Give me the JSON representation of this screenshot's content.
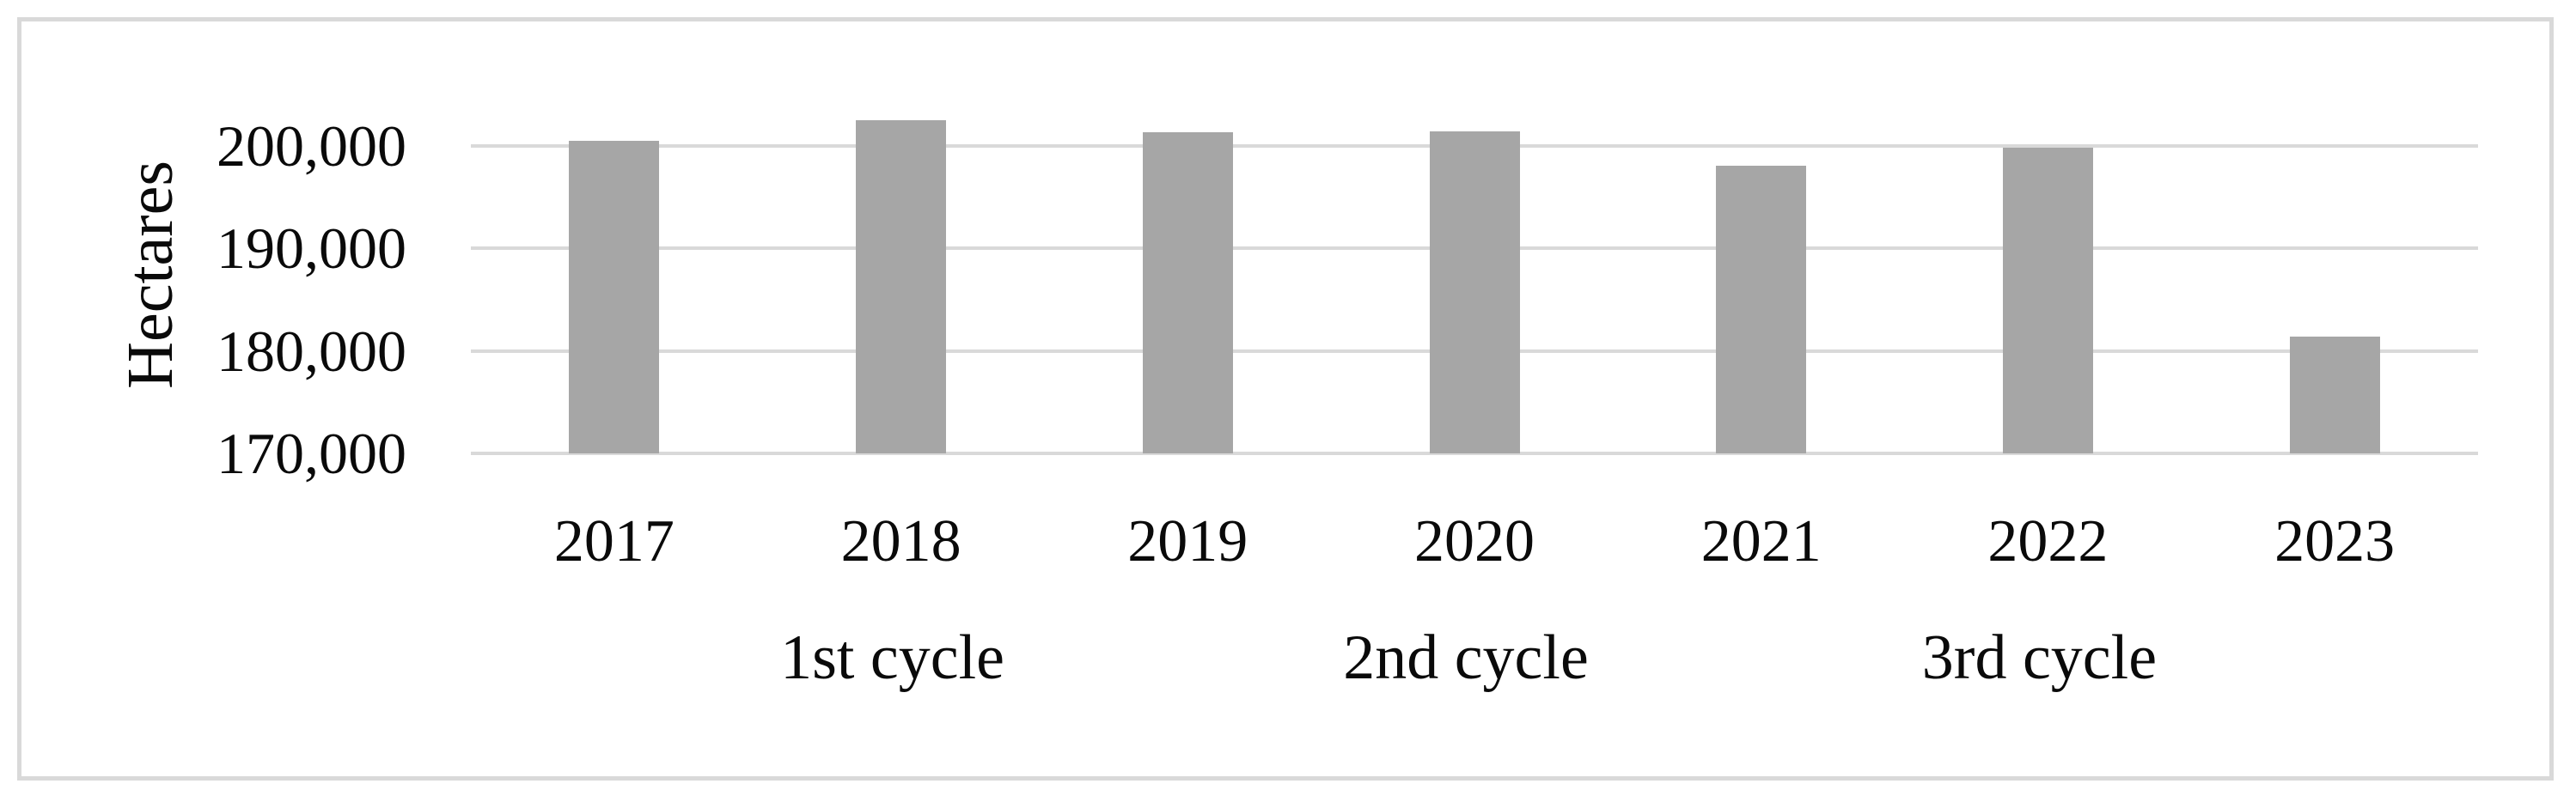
{
  "figure": {
    "background": "#ffffff",
    "frame_color": "#d9d9d9",
    "text_color": "#0a0a0a"
  },
  "chart_data": {
    "type": "bar",
    "title": "",
    "xlabel": "",
    "ylabel": "Hectares",
    "categories": [
      "2017",
      "2018",
      "2019",
      "2020",
      "2021",
      "2022",
      "2023"
    ],
    "values": [
      200500,
      202500,
      201300,
      201400,
      198100,
      199800,
      181400
    ],
    "ylim": [
      170000,
      203000
    ],
    "yticks": [
      {
        "value": 200000,
        "label": "200,000"
      },
      {
        "value": 190000,
        "label": "190,000"
      },
      {
        "value": 180000,
        "label": "180,000"
      },
      {
        "value": 170000,
        "label": "170,000"
      }
    ],
    "cycle_labels": [
      {
        "label": "1st cycle",
        "category": "2018"
      },
      {
        "label": "2nd cycle",
        "category": "2020"
      },
      {
        "label": "3rd cycle",
        "category": "2022"
      }
    ],
    "grid": "horizontal",
    "legend": "none",
    "bar_color": "#a6a6a6",
    "gridline_color": "#d9d9d9"
  }
}
